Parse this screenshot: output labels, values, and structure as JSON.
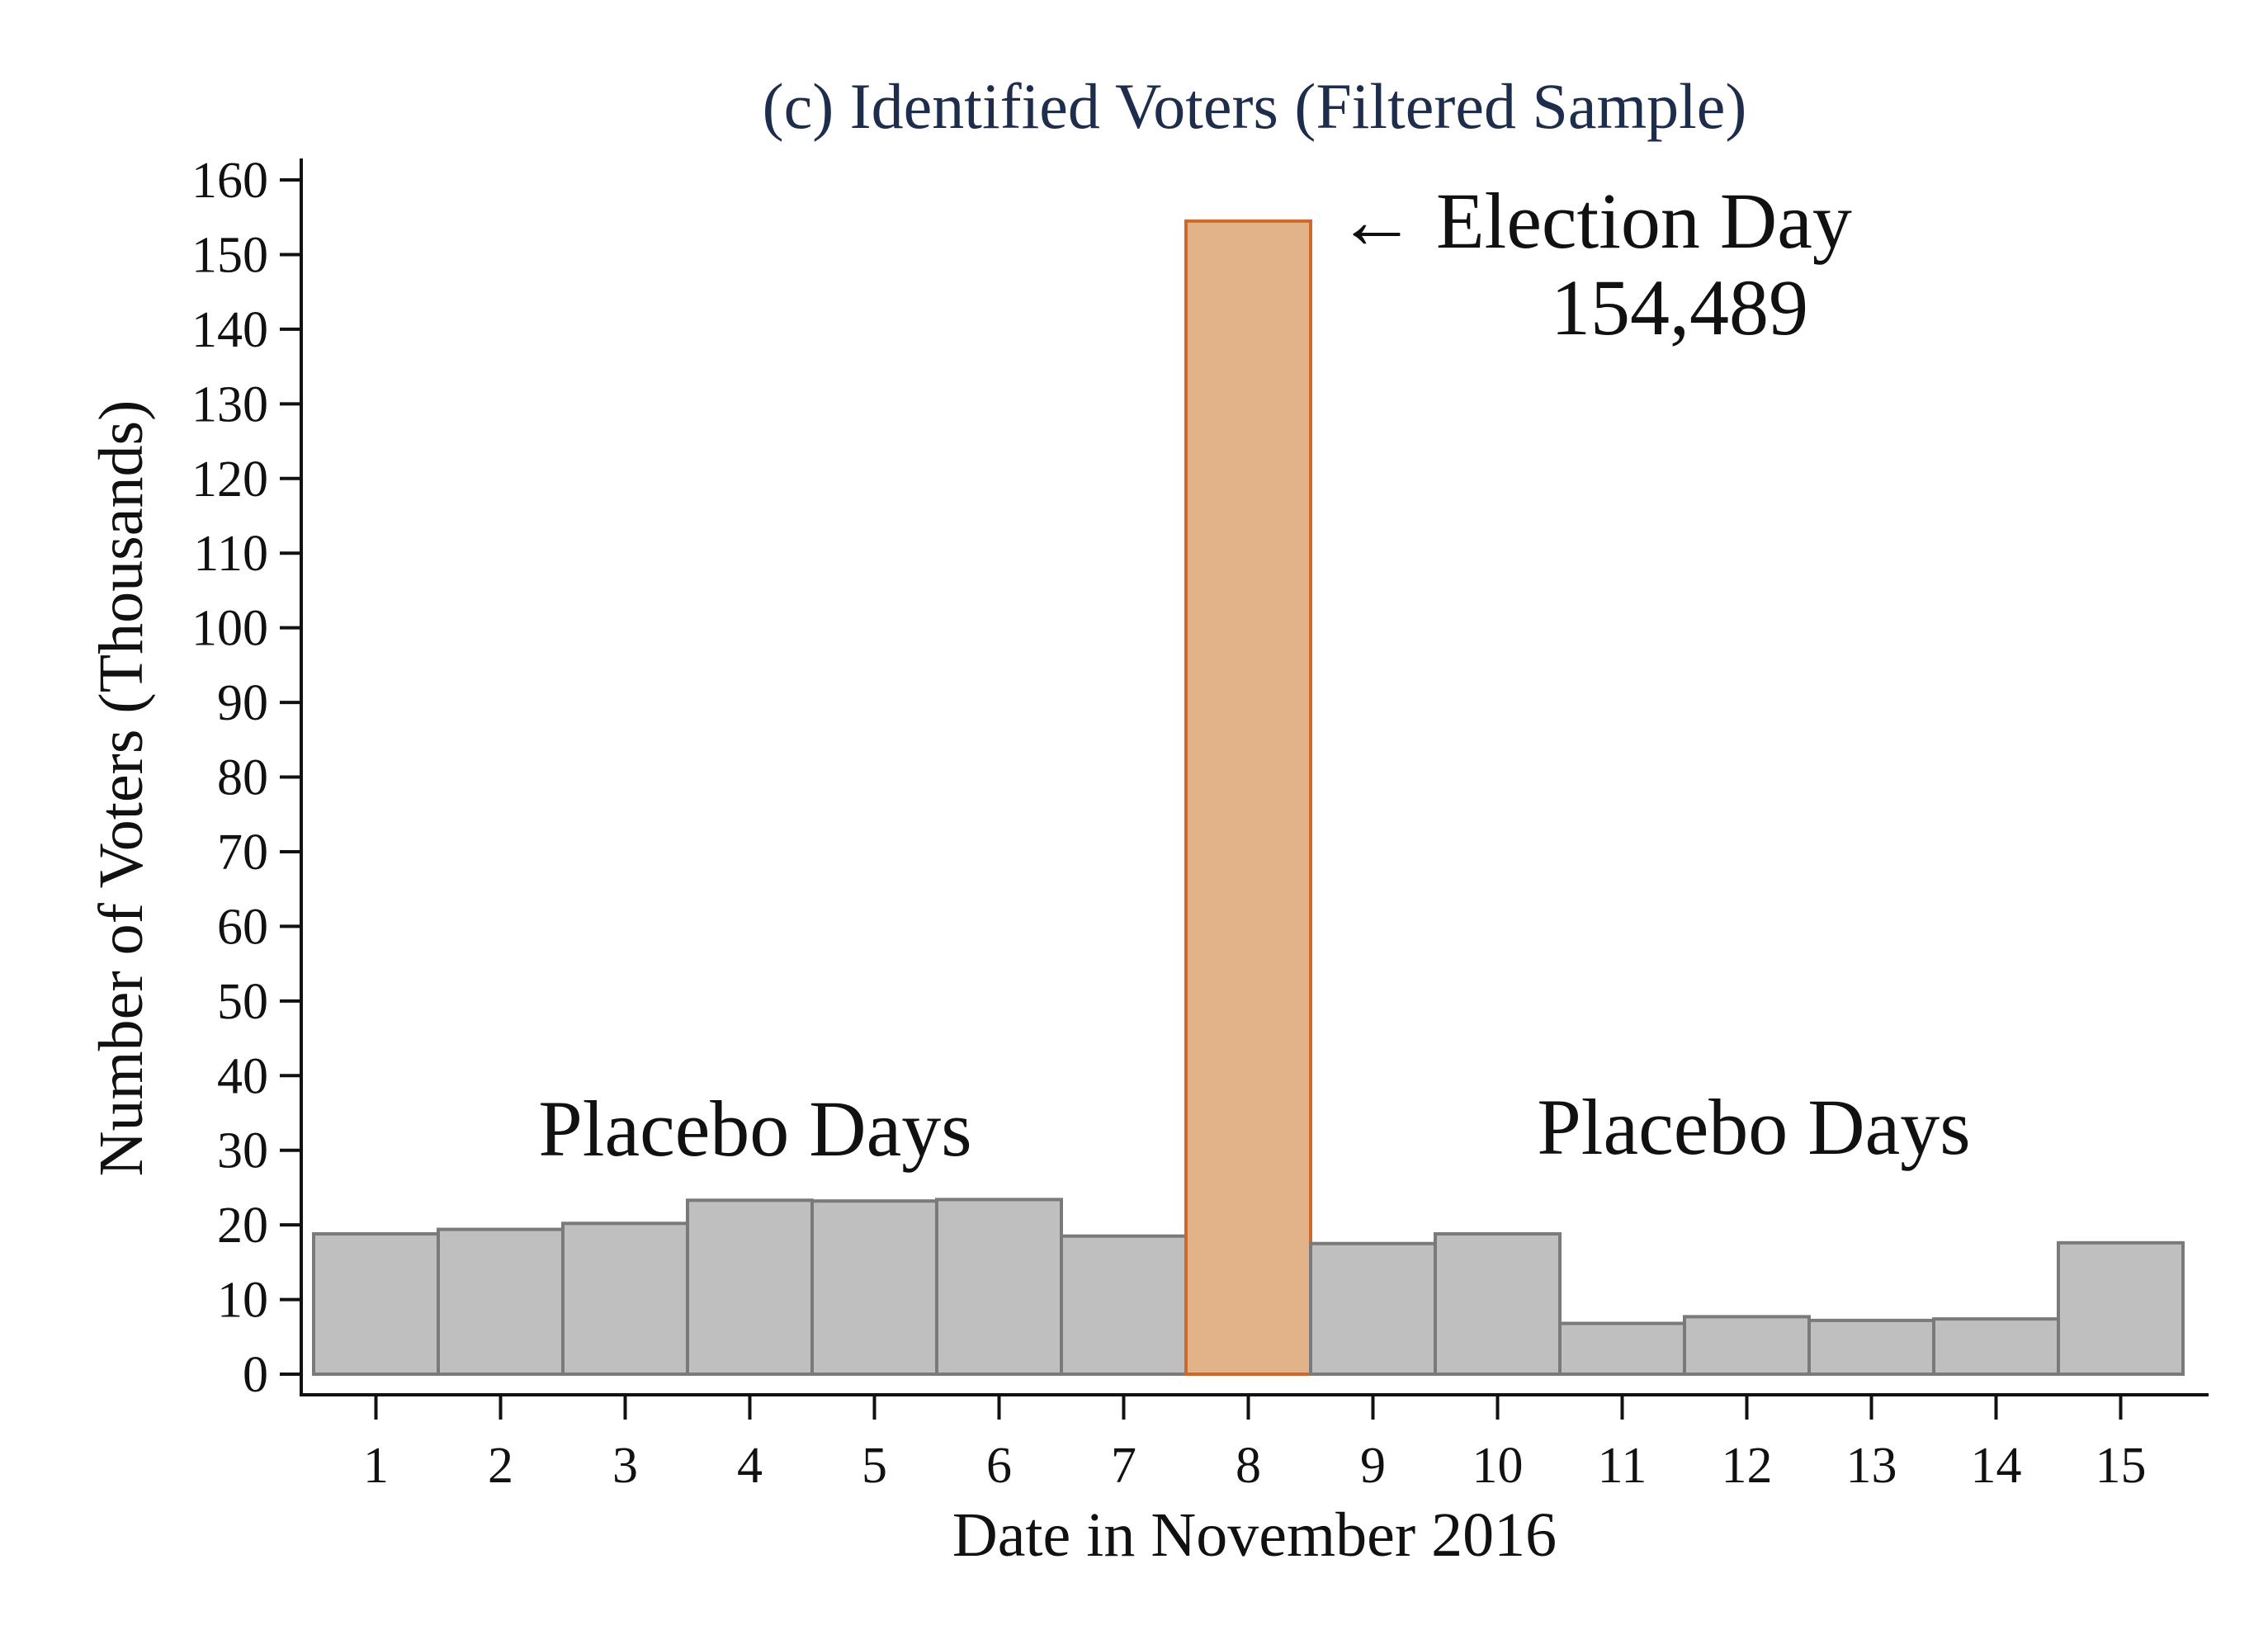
{
  "chart_data": {
    "type": "bar",
    "title": "(c) Identified Voters (Filtered Sample)",
    "xlabel": "Date in November 2016",
    "ylabel": "Number of Voters (Thousands)",
    "ylim": [
      0,
      160
    ],
    "yticks": [
      0,
      10,
      20,
      30,
      40,
      50,
      60,
      70,
      80,
      90,
      100,
      110,
      120,
      130,
      140,
      150,
      160
    ],
    "categories": [
      "1",
      "2",
      "3",
      "4",
      "5",
      "6",
      "7",
      "8",
      "9",
      "10",
      "11",
      "12",
      "13",
      "14",
      "15"
    ],
    "values": [
      18.8,
      19.4,
      20.2,
      23.3,
      23.2,
      23.4,
      18.5,
      154.489,
      17.5,
      18.8,
      6.8,
      7.7,
      7.2,
      7.4,
      17.6
    ],
    "highlight_index": 7,
    "colors": {
      "bar": "#bfbfbf",
      "bar_edge": "#7a7a7a",
      "highlight": "#e2b388",
      "highlight_edge": "#cc6a2e",
      "title": "#1f2d4d"
    },
    "annotations": {
      "election_label": "← Election Day",
      "election_value": "154,489",
      "placebo_left": "Placebo Days",
      "placebo_right": "Placebo Days"
    },
    "grid": false,
    "legend": "none"
  }
}
